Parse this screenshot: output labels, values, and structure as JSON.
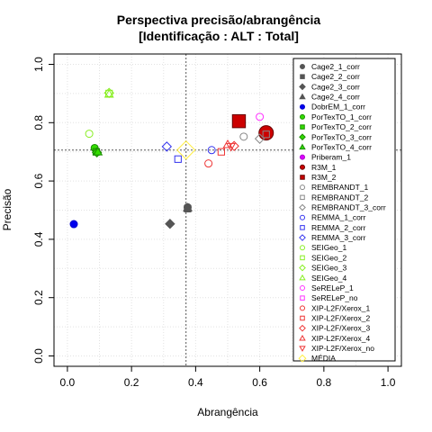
{
  "chart_data": {
    "type": "scatter",
    "title": "Perspectiva precisão/abrangência",
    "subtitle": "[Identificação : ALT : Total]",
    "xlabel": "Abrangência",
    "ylabel": "Precisão",
    "xlim": [
      0,
      1
    ],
    "ylim": [
      0,
      1
    ],
    "xticks": [
      "0.0",
      "0.2",
      "0.4",
      "0.6",
      "0.8",
      "1.0"
    ],
    "yticks": [
      "0.0",
      "0.2",
      "0.4",
      "0.6",
      "0.8",
      "1.0"
    ],
    "grid": true,
    "legend_position": "right",
    "reference_lines": {
      "x": 0.37,
      "y": 0.706
    },
    "series": [
      {
        "name": "Cage2_1_corr",
        "shape": "circle",
        "color": "#555555",
        "fill": "#555555",
        "size": 1.0,
        "points": [
          [
            0.375,
            0.51
          ]
        ]
      },
      {
        "name": "Cage2_2_corr",
        "shape": "square",
        "color": "#555555",
        "fill": "#555555",
        "size": 1.0,
        "points": [
          [
            0.375,
            0.505
          ]
        ]
      },
      {
        "name": "Cage2_3_corr",
        "shape": "diamond",
        "color": "#555555",
        "fill": "#555555",
        "size": 1.0,
        "points": [
          [
            0.32,
            0.453
          ]
        ]
      },
      {
        "name": "Cage2_4_corr",
        "shape": "triangle",
        "color": "#555555",
        "fill": "#555555",
        "size": 1.0,
        "points": [
          [
            0.375,
            0.508
          ]
        ]
      },
      {
        "name": "DobrEM_1_corr",
        "shape": "circle",
        "color": "#0000cc",
        "fill": "#0000ee",
        "size": 1.0,
        "points": [
          [
            0.02,
            0.452
          ]
        ]
      },
      {
        "name": "PorTexTO_1_corr",
        "shape": "circle",
        "color": "#1a8a00",
        "fill": "#33dd00",
        "size": 1.0,
        "points": [
          [
            0.085,
            0.713
          ]
        ]
      },
      {
        "name": "PorTexTO_2_corr",
        "shape": "square",
        "color": "#1a8a00",
        "fill": "#33dd00",
        "size": 1.0,
        "points": [
          [
            0.09,
            0.7
          ]
        ]
      },
      {
        "name": "PorTexTO_3_corr",
        "shape": "diamond",
        "color": "#1a8a00",
        "fill": "#33dd00",
        "size": 1.0,
        "points": [
          [
            0.092,
            0.698
          ]
        ]
      },
      {
        "name": "PorTexTO_4_corr",
        "shape": "triangle",
        "color": "#1a8a00",
        "fill": "#33dd00",
        "size": 1.0,
        "points": [
          [
            0.095,
            0.7
          ]
        ]
      },
      {
        "name": "Priberam_1",
        "shape": "circle",
        "color": "#aa00cc",
        "fill": "#dd00ff",
        "size": 0.5,
        "points": []
      },
      {
        "name": "R3M_1",
        "shape": "circle",
        "color": "#660000",
        "fill": "#cc0000",
        "size": 2.0,
        "points": [
          [
            0.62,
            0.765
          ]
        ]
      },
      {
        "name": "R3M_2",
        "shape": "square",
        "color": "#660000",
        "fill": "#cc0000",
        "size": 2.0,
        "points": [
          [
            0.535,
            0.805
          ]
        ]
      },
      {
        "name": "REMBRANDT_1",
        "shape": "circle",
        "color": "#888888",
        "fill": "none",
        "size": 1.0,
        "points": [
          [
            0.55,
            0.752
          ]
        ]
      },
      {
        "name": "REMBRANDT_2",
        "shape": "square",
        "color": "#888888",
        "fill": "none",
        "size": 1.0,
        "points": [
          [
            0.62,
            0.76
          ]
        ]
      },
      {
        "name": "REMBRANDT_3_corr",
        "shape": "diamond",
        "color": "#888888",
        "fill": "none",
        "size": 1.0,
        "points": [
          [
            0.6,
            0.745
          ]
        ]
      },
      {
        "name": "REMMA_1_corr",
        "shape": "circle",
        "color": "#3333ee",
        "fill": "none",
        "size": 1.0,
        "points": [
          [
            0.45,
            0.706
          ]
        ]
      },
      {
        "name": "REMMA_2_corr",
        "shape": "square",
        "color": "#3333ee",
        "fill": "none",
        "size": 1.0,
        "points": [
          [
            0.345,
            0.675
          ]
        ]
      },
      {
        "name": "REMMA_3_corr",
        "shape": "diamond",
        "color": "#3333ee",
        "fill": "none",
        "size": 1.0,
        "points": [
          [
            0.31,
            0.718
          ]
        ]
      },
      {
        "name": "SEIGeo_1",
        "shape": "circle",
        "color": "#88ee22",
        "fill": "none",
        "size": 1.0,
        "points": [
          [
            0.068,
            0.762
          ]
        ]
      },
      {
        "name": "SEIGeo_2",
        "shape": "square",
        "color": "#88ee22",
        "fill": "none",
        "size": 1.0,
        "points": [
          [
            0.13,
            0.9
          ]
        ]
      },
      {
        "name": "SEIGeo_3",
        "shape": "diamond",
        "color": "#88ee22",
        "fill": "none",
        "size": 1.0,
        "points": [
          [
            0.13,
            0.902
          ]
        ]
      },
      {
        "name": "SEIGeo_4",
        "shape": "triangle",
        "color": "#88ee22",
        "fill": "none",
        "size": 1.0,
        "points": [
          [
            0.13,
            0.898
          ]
        ]
      },
      {
        "name": "SeRELeP_1",
        "shape": "circle",
        "color": "#ff33ff",
        "fill": "none",
        "size": 1.0,
        "points": [
          [
            0.6,
            0.82
          ]
        ]
      },
      {
        "name": "SeRELeP_no",
        "shape": "square",
        "color": "#ff33ff",
        "fill": "none",
        "size": 1.0,
        "points": []
      },
      {
        "name": "XIP-L2F/Xerox_1",
        "shape": "circle",
        "color": "#ee3333",
        "fill": "none",
        "size": 1.0,
        "points": [
          [
            0.44,
            0.66
          ]
        ]
      },
      {
        "name": "XIP-L2F/Xerox_2",
        "shape": "square",
        "color": "#ee3333",
        "fill": "none",
        "size": 1.0,
        "points": [
          [
            0.48,
            0.7
          ]
        ]
      },
      {
        "name": "XIP-L2F/Xerox_3",
        "shape": "diamond",
        "color": "#ee3333",
        "fill": "none",
        "size": 1.0,
        "points": [
          [
            0.52,
            0.72
          ]
        ]
      },
      {
        "name": "XIP-L2F/Xerox_4",
        "shape": "triangle",
        "color": "#ee3333",
        "fill": "none",
        "size": 1.0,
        "points": [
          [
            0.5,
            0.725
          ]
        ]
      },
      {
        "name": "XIP-L2F/Xerox_no",
        "shape": "triangle-down",
        "color": "#ee3333",
        "fill": "none",
        "size": 1.0,
        "points": [
          [
            0.51,
            0.718
          ]
        ]
      },
      {
        "name": "MÉDIA",
        "shape": "diamond",
        "color": "#ffee44",
        "fill": "none",
        "size": 2.0,
        "points": [
          [
            0.37,
            0.706
          ]
        ]
      }
    ]
  }
}
